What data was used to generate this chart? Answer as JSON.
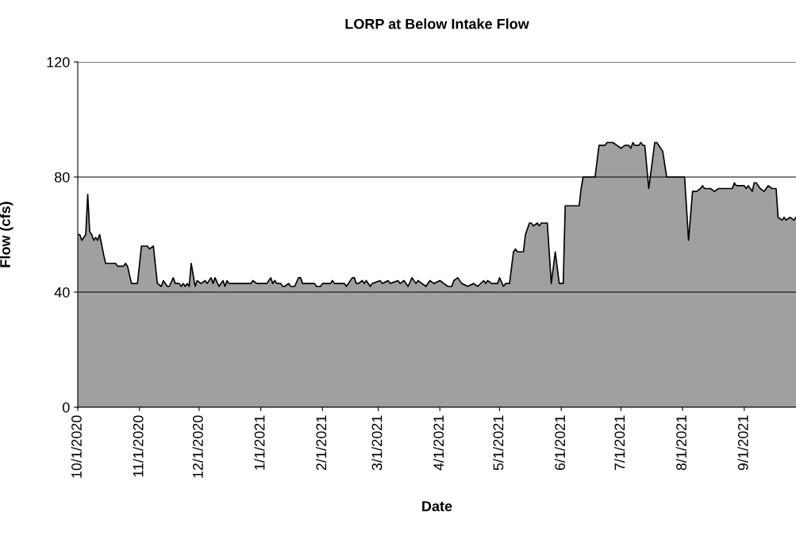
{
  "chart_data": {
    "type": "area",
    "title": "LORP at Below Intake Flow",
    "xlabel": "Date",
    "ylabel": "Flow (cfs)",
    "x": [
      "2020-10-01",
      "2020-10-02",
      "2020-10-03",
      "2020-10-05",
      "2020-10-06",
      "2020-10-07",
      "2020-10-08",
      "2020-10-09",
      "2020-10-10",
      "2020-10-11",
      "2020-10-12",
      "2020-10-14",
      "2020-10-15",
      "2020-10-20",
      "2020-10-21",
      "2020-10-24",
      "2020-10-25",
      "2020-10-26",
      "2020-10-28",
      "2020-10-31",
      "2020-11-02",
      "2020-11-05",
      "2020-11-06",
      "2020-11-08",
      "2020-11-10",
      "2020-11-12",
      "2020-11-13",
      "2020-11-15",
      "2020-11-16",
      "2020-11-18",
      "2020-11-19",
      "2020-11-21",
      "2020-11-22",
      "2020-11-23",
      "2020-11-24",
      "2020-11-25",
      "2020-11-26",
      "2020-11-27",
      "2020-11-29",
      "2020-11-30",
      "2020-12-02",
      "2020-12-04",
      "2020-12-05",
      "2020-12-07",
      "2020-12-08",
      "2020-12-09",
      "2020-12-11",
      "2020-12-13",
      "2020-12-14",
      "2020-12-15",
      "2020-12-16",
      "2020-12-27",
      "2020-12-28",
      "2020-12-30",
      "2021-01-04",
      "2021-01-06",
      "2021-01-07",
      "2021-01-08",
      "2021-01-09",
      "2021-01-11",
      "2021-01-12",
      "2021-01-13",
      "2021-01-15",
      "2021-01-16",
      "2021-01-18",
      "2021-01-20",
      "2021-01-21",
      "2021-01-22",
      "2021-01-28",
      "2021-01-29",
      "2021-01-31",
      "2021-02-01",
      "2021-02-05",
      "2021-02-06",
      "2021-02-07",
      "2021-02-12",
      "2021-02-13",
      "2021-02-16",
      "2021-02-17",
      "2021-02-18",
      "2021-02-19",
      "2021-02-21",
      "2021-02-22",
      "2021-02-23",
      "2021-02-25",
      "2021-02-26",
      "2021-03-02",
      "2021-03-03",
      "2021-03-06",
      "2021-03-07",
      "2021-03-11",
      "2021-03-12",
      "2021-03-14",
      "2021-03-16",
      "2021-03-18",
      "2021-03-20",
      "2021-03-21",
      "2021-03-23",
      "2021-03-25",
      "2021-03-27",
      "2021-03-29",
      "2021-04-01",
      "2021-04-03",
      "2021-04-05",
      "2021-04-07",
      "2021-04-08",
      "2021-04-10",
      "2021-04-12",
      "2021-04-15",
      "2021-04-18",
      "2021-04-20",
      "2021-04-23",
      "2021-04-24",
      "2021-04-25",
      "2021-04-27",
      "2021-04-30",
      "2021-05-01",
      "2021-05-03",
      "2021-05-04",
      "2021-05-06",
      "2021-05-08",
      "2021-05-09",
      "2021-05-10",
      "2021-05-13",
      "2021-05-14",
      "2021-05-16",
      "2021-05-17",
      "2021-05-18",
      "2021-05-20",
      "2021-05-21",
      "2021-05-22",
      "2021-05-25",
      "2021-05-27",
      "2021-05-29",
      "2021-05-31",
      "2021-06-02",
      "2021-06-03",
      "2021-06-10",
      "2021-06-11",
      "2021-06-12",
      "2021-06-18",
      "2021-06-20",
      "2021-06-23",
      "2021-06-24",
      "2021-06-27",
      "2021-06-29",
      "2021-07-01",
      "2021-07-03",
      "2021-07-05",
      "2021-07-06",
      "2021-07-07",
      "2021-07-08",
      "2021-07-10",
      "2021-07-11",
      "2021-07-12",
      "2021-07-13",
      "2021-07-15",
      "2021-07-18",
      "2021-07-19",
      "2021-07-21",
      "2021-07-22",
      "2021-07-24",
      "2021-08-02",
      "2021-08-04",
      "2021-08-06",
      "2021-08-08",
      "2021-08-10",
      "2021-08-11",
      "2021-08-12",
      "2021-08-15",
      "2021-08-17",
      "2021-08-19",
      "2021-08-26",
      "2021-08-27",
      "2021-08-28",
      "2021-09-01",
      "2021-09-02",
      "2021-09-03",
      "2021-09-05",
      "2021-09-06",
      "2021-09-07",
      "2021-09-09",
      "2021-09-11",
      "2021-09-12",
      "2021-09-13",
      "2021-09-15",
      "2021-09-17",
      "2021-09-18",
      "2021-09-20",
      "2021-09-21",
      "2021-09-22",
      "2021-09-24",
      "2021-09-26",
      "2021-09-27"
    ],
    "series": [
      {
        "color": "#a0a0a0",
        "values": [
          60,
          60,
          58,
          60,
          74,
          61,
          60,
          58,
          59,
          58,
          60,
          53,
          50,
          50,
          49,
          49,
          50,
          49,
          43,
          43,
          56,
          56,
          55,
          56,
          43,
          42,
          44,
          42,
          42,
          45,
          43,
          43,
          42,
          43,
          42,
          43,
          42,
          50,
          42,
          44,
          43,
          44,
          43,
          45,
          43,
          45,
          42,
          44,
          42,
          44,
          43,
          43,
          44,
          43,
          43,
          45,
          43,
          44,
          43,
          43,
          42,
          42,
          43,
          42,
          42,
          45,
          45,
          43,
          43,
          42,
          42,
          43,
          43,
          44,
          43,
          43,
          42,
          45,
          45,
          43,
          43,
          44,
          43,
          44,
          42,
          43,
          44,
          43,
          44,
          43,
          44,
          43,
          44,
          42,
          45,
          43,
          44,
          43,
          42,
          44,
          43,
          44,
          43,
          42,
          42,
          44,
          45,
          43,
          42,
          43,
          42,
          44,
          43,
          44,
          43,
          43,
          45,
          42,
          43,
          43,
          54,
          55,
          54,
          54,
          60,
          64,
          64,
          63,
          64,
          63,
          64,
          64,
          43,
          54,
          43,
          43,
          70,
          70,
          76,
          80,
          80,
          91,
          91,
          92,
          92,
          91,
          90,
          91,
          91,
          90,
          92,
          91,
          91,
          92,
          91,
          91,
          76,
          92,
          92,
          90,
          89,
          80,
          80,
          58,
          75,
          75,
          76,
          77,
          76,
          76,
          75,
          76,
          76,
          78,
          77,
          77,
          76,
          77,
          75,
          78,
          78,
          76,
          75,
          76,
          77,
          76,
          76,
          66,
          65,
          66,
          65,
          66,
          65,
          66
        ]
      }
    ],
    "xlim": [
      "2020-10-01",
      "2021-09-27"
    ],
    "xticks": [
      {
        "value": "2020-10-01",
        "label": "10/1/2020"
      },
      {
        "value": "2020-11-01",
        "label": "11/1/2020"
      },
      {
        "value": "2020-12-01",
        "label": "12/1/2020"
      },
      {
        "value": "2021-01-01",
        "label": "1/1/2021"
      },
      {
        "value": "2021-02-01",
        "label": "2/1/2021"
      },
      {
        "value": "2021-03-01",
        "label": "3/1/2021"
      },
      {
        "value": "2021-04-01",
        "label": "4/1/2021"
      },
      {
        "value": "2021-05-01",
        "label": "5/1/2021"
      },
      {
        "value": "2021-06-01",
        "label": "6/1/2021"
      },
      {
        "value": "2021-07-01",
        "label": "7/1/2021"
      },
      {
        "value": "2021-08-01",
        "label": "8/1/2021"
      },
      {
        "value": "2021-09-01",
        "label": "9/1/2021"
      }
    ],
    "ylim": [
      0,
      120
    ],
    "yticks": [
      0,
      40,
      80,
      120
    ],
    "grid": "y"
  }
}
